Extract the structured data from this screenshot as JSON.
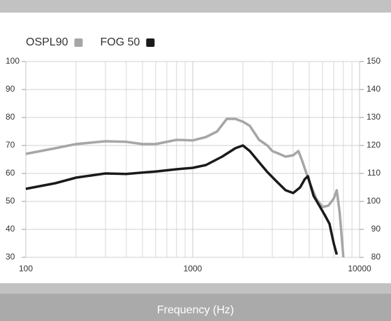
{
  "chart_data": {
    "type": "line",
    "xlabel": "Frequency (Hz)",
    "xscale": "log",
    "minor_grid": true,
    "grid": true,
    "xlim": [
      100,
      10000
    ],
    "xticks": [
      100,
      1000,
      10000
    ],
    "ylim": [
      30,
      100
    ],
    "yticks": [
      30,
      40,
      50,
      60,
      70,
      80,
      90,
      100
    ],
    "y2lim": [
      80,
      150
    ],
    "y2ticks": [
      80,
      90,
      100,
      110,
      120,
      130,
      140,
      150
    ],
    "series": [
      {
        "name": "OSPL90",
        "color": "#a6a6a6",
        "axis": "y2",
        "x": [
          100,
          150,
          200,
          300,
          400,
          500,
          600,
          800,
          1000,
          1200,
          1400,
          1600,
          1800,
          2000,
          2200,
          2500,
          2800,
          3000,
          3300,
          3600,
          4000,
          4300,
          4500,
          5000,
          5500,
          6000,
          6500,
          7000,
          7300,
          7600,
          8000
        ],
        "values": [
          117,
          119,
          120.5,
          121.5,
          121.3,
          120.5,
          120.5,
          122,
          121.8,
          123,
          125,
          129.5,
          129.5,
          128.5,
          127,
          122,
          120,
          118,
          117,
          116,
          116.5,
          118,
          115,
          107,
          101,
          98,
          98.5,
          101,
          104,
          96,
          80
        ]
      },
      {
        "name": "FOG 50",
        "color": "#1a1a1a",
        "x": [
          100,
          150,
          200,
          300,
          400,
          500,
          600,
          800,
          1000,
          1200,
          1500,
          1800,
          2000,
          2200,
          2500,
          2800,
          3200,
          3600,
          4000,
          4400,
          4700,
          4900,
          5300,
          5800,
          6200,
          6600,
          7000,
          7300
        ],
        "values": [
          54.5,
          56.5,
          58.5,
          60,
          59.8,
          60.3,
          60.7,
          61.5,
          62,
          63,
          66,
          69,
          70,
          68,
          64,
          60.5,
          57,
          54,
          53,
          55,
          58,
          59,
          52,
          48,
          45,
          42,
          35,
          31
        ]
      }
    ]
  }
}
